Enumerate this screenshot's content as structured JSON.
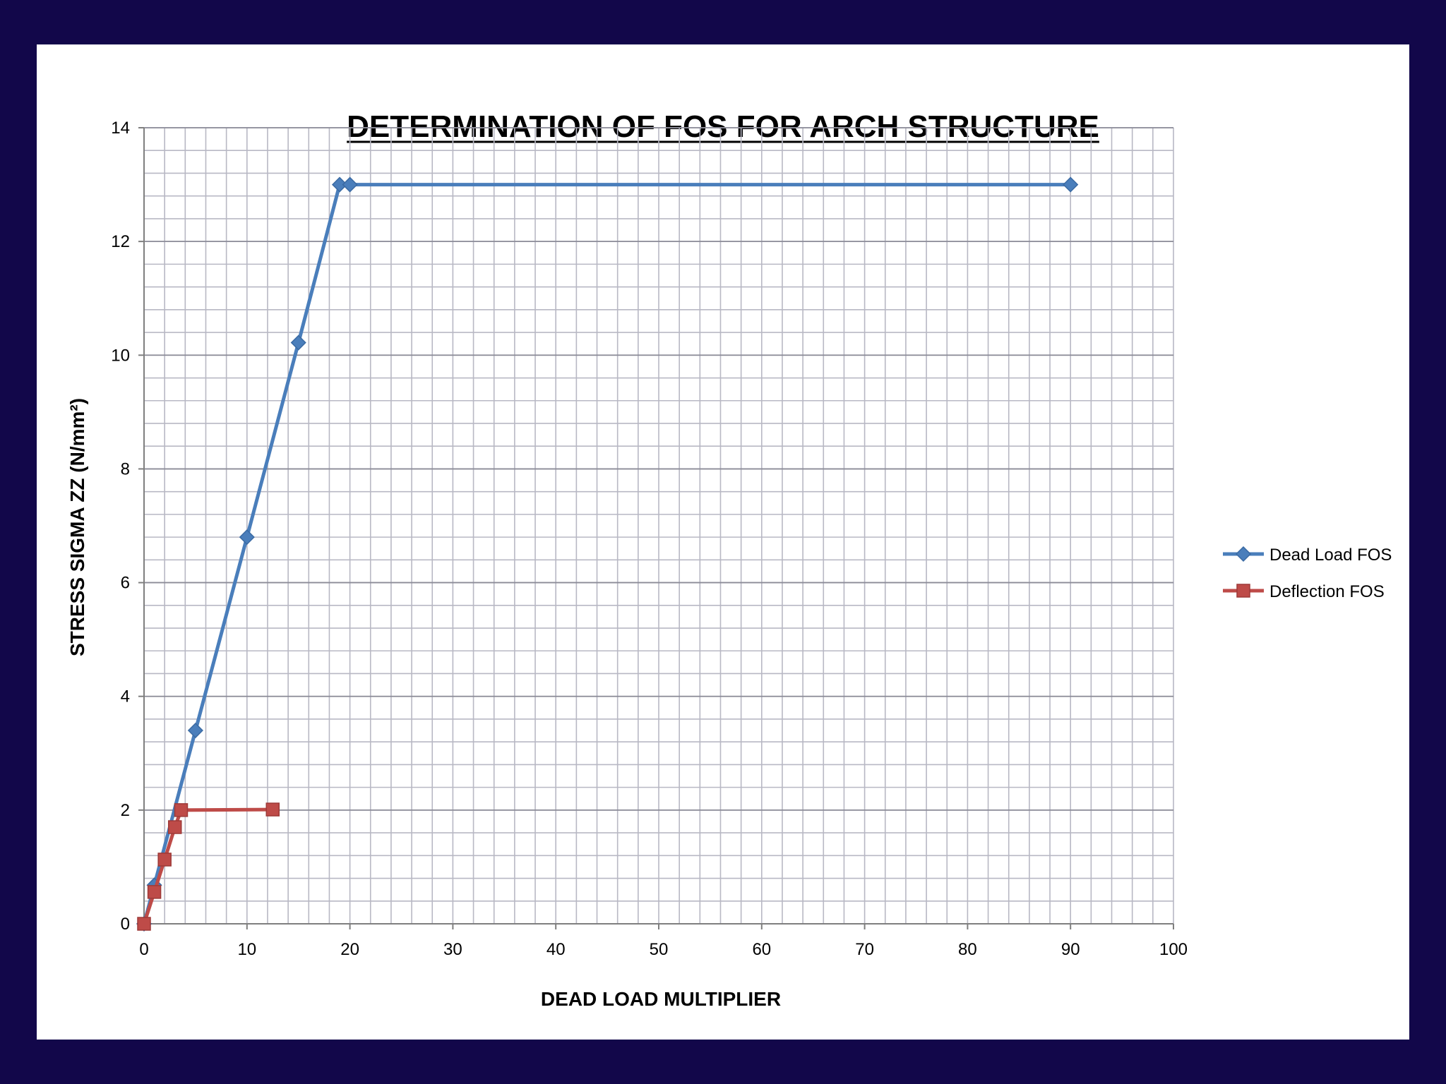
{
  "chart_data": {
    "type": "line",
    "title": "DETERMINATION OF FOS FOR ARCH STRUCTURE",
    "xlabel": "DEAD LOAD MULTIPLIER",
    "ylabel": "STRESS SIGMA ZZ (N/mm²)",
    "xlim": [
      0,
      100
    ],
    "ylim": [
      0,
      14
    ],
    "x_ticks": [
      0,
      10,
      20,
      30,
      40,
      50,
      60,
      70,
      80,
      90,
      100
    ],
    "y_ticks": [
      0,
      2,
      4,
      6,
      8,
      10,
      12,
      14
    ],
    "x_minor_step": 2,
    "y_minor_step": 0.4,
    "grid": true,
    "legend_position": "right",
    "series": [
      {
        "name": "Dead Load FOS",
        "color": "#4a7ebb",
        "marker": "diamond",
        "points": [
          [
            0,
            0
          ],
          [
            1,
            0.68
          ],
          [
            5,
            3.4
          ],
          [
            10,
            6.8
          ],
          [
            15,
            10.22
          ],
          [
            19,
            13.0
          ],
          [
            20,
            13.0
          ],
          [
            90,
            13.0
          ]
        ]
      },
      {
        "name": "Deflection FOS",
        "color": "#be4b48",
        "marker": "square",
        "points": [
          [
            0,
            0
          ],
          [
            1,
            0.56
          ],
          [
            2,
            1.13
          ],
          [
            3,
            1.7
          ],
          [
            3.6,
            2.0
          ],
          [
            12.5,
            2.01
          ]
        ]
      }
    ]
  }
}
